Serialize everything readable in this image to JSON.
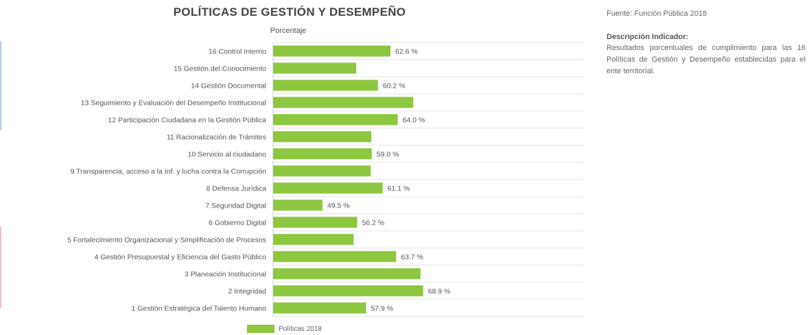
{
  "chart_data": {
    "type": "bar",
    "orientation": "horizontal",
    "title": "POLÍTICAS DE GESTIÓN Y DESEMPEÑO",
    "xlabel": "Porcentaje",
    "categories": [
      "16 Control Interno",
      "15 Gestión del Conocimiento",
      "14 Gestión Documental",
      "13 Seguimiento y Evaluación del Desempeño Institucional",
      "12 Participación Ciudadana en la Gestión Pública",
      "11 Racionalización de Trámites",
      "10 Servicio al ciudadano",
      "9 Transparencia, acceso a la Inf. y lucha contra la Corrupción",
      "8 Defensa Jurídica",
      "7 Seguridad Digital",
      "6 Gobierno Digital",
      "5 Fortalecimiento Organizacional y Simplificación de Procesos",
      "4 Gestión Presupuestal y Eficiencia del Gasto Público",
      "3 Planeación Institucional",
      "2 Integridad",
      "1 Gestión Estratégica del Talento Humano"
    ],
    "series": [
      {
        "name": "Políticas 2018",
        "color": "#8dc63f",
        "values": [
          62.6,
          56.0,
          60.2,
          67.0,
          64.0,
          58.9,
          59.0,
          58.8,
          61.1,
          49.5,
          56.2,
          55.5,
          63.7,
          68.4,
          68.9,
          57.9
        ],
        "labels": [
          "62.6 %",
          "",
          "60.2 %",
          "",
          "64.0 %",
          "",
          "59.0 %",
          "",
          "61.1 %",
          "49.5 %",
          "56.2 %",
          "",
          "63.7 %",
          "",
          "68.9 %",
          "57.9 %"
        ]
      }
    ],
    "xlim": [
      40,
      100
    ],
    "grid": true,
    "legend": "bottom"
  },
  "side": {
    "source": "Fuente: Función Pública 2018",
    "description_title": "Descripción Indicador:",
    "description_text": "Resultados porcentuales de cumplimiento para las 16 Políticas de Gestión y Desempeño establecidas para el ente territorial."
  },
  "colors": {
    "bar": "#8dc63f",
    "grid": "#e3e3e3",
    "text": "#555555"
  }
}
